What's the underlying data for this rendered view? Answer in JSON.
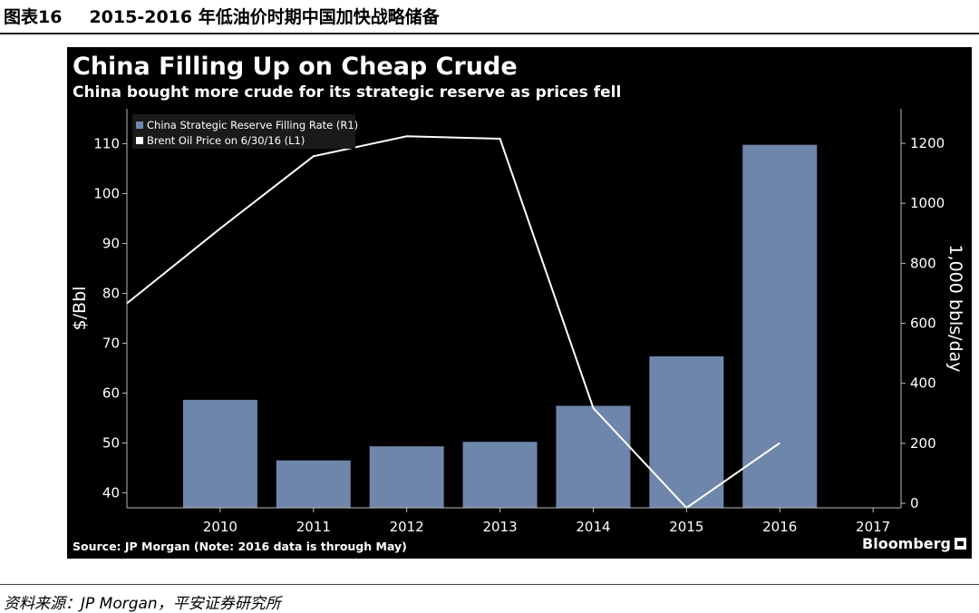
{
  "caption": {
    "number": "图表16",
    "title": "2015-2016 年低油价时期中国加快战略储备"
  },
  "chart": {
    "title": "China Filling Up on Cheap Crude",
    "subtitle": "China bought more crude for its strategic reserve as prices fell",
    "source": "Source: JP Morgan (Note: 2016 data is through May)",
    "brand": "Bloomberg"
  },
  "footer": {
    "source_note": "资料来源：JP Morgan，平安证券研究所"
  },
  "chart_data": {
    "type": "bar",
    "categories": [
      "2010",
      "2011",
      "2012",
      "2013",
      "2014",
      "2015",
      "2016",
      "2017"
    ],
    "x_ticks": [
      "2010",
      "2011",
      "2012",
      "2013",
      "2014",
      "2015",
      "2016",
      "2017"
    ],
    "y_left": {
      "label": "$/Bbl",
      "range": [
        37,
        117
      ],
      "ticks": [
        40,
        50,
        60,
        70,
        80,
        90,
        100,
        110
      ]
    },
    "y_right": {
      "label": "1,000 bbls/day",
      "range": [
        -15,
        1315
      ],
      "ticks": [
        0,
        200,
        400,
        600,
        800,
        1000,
        1200
      ]
    },
    "series": [
      {
        "name": "China Strategic Reserve Filling Rate (R1)",
        "type": "bar",
        "axis": "right",
        "color": "#6f86ab",
        "x": [
          2010,
          2011,
          2012,
          2013,
          2014,
          2015,
          2016
        ],
        "values": [
          345,
          143,
          190,
          205,
          325,
          490,
          1195
        ]
      },
      {
        "name": "Brent Oil Price on 6/30/16 (L1)",
        "type": "line",
        "axis": "left",
        "color": "#ffffff",
        "x": [
          2009,
          2010,
          2011,
          2012,
          2013,
          2014,
          2015,
          2016
        ],
        "values": [
          78,
          93,
          107.5,
          111.5,
          111,
          57,
          37,
          50
        ]
      }
    ],
    "legend_position": "top-left",
    "grid": false,
    "background": "#000000"
  }
}
